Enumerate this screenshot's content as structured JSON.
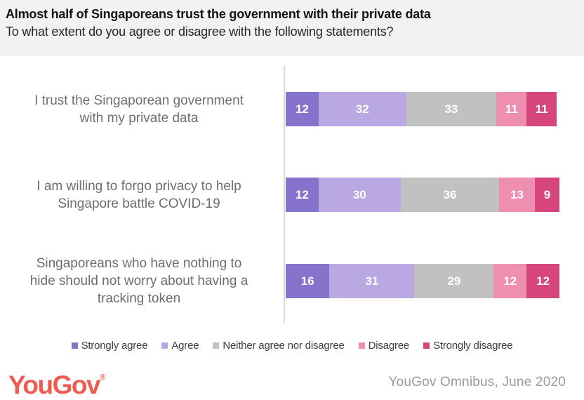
{
  "header": {
    "title": "Almost half of Singaporeans trust the government with their private data",
    "subtitle": "To what extent do you agree or disagree with the following statements?"
  },
  "chart_data": {
    "type": "bar",
    "orientation": "horizontal",
    "stacked": true,
    "title": "Almost half of Singaporeans trust the government with their private data",
    "subtitle": "To what extent do you agree or disagree with the following statements?",
    "xlabel": "",
    "ylabel": "",
    "xlim": [
      0,
      100
    ],
    "value_unit": "percent",
    "value_labels_position": "inside",
    "legend_position": "bottom",
    "grid": false,
    "categories": [
      "I trust the Singaporean government\nwith my private data",
      "I am willing to forgo privacy to help\nSingapore battle COVID-19",
      "Singaporeans who have nothing to\nhide should not worry about having a\ntracking token"
    ],
    "series": [
      {
        "name": "Strongly agree",
        "color": "#8673cb",
        "values": [
          12,
          12,
          16
        ]
      },
      {
        "name": "Agree",
        "color": "#b9a8e2",
        "values": [
          32,
          30,
          31
        ]
      },
      {
        "name": "Neither agree nor disagree",
        "color": "#c2c1c2",
        "values": [
          33,
          36,
          29
        ]
      },
      {
        "name": "Disagree",
        "color": "#ee8fb1",
        "values": [
          11,
          13,
          12
        ]
      },
      {
        "name": "Strongly disagree",
        "color": "#d6457b",
        "values": [
          11,
          9,
          12
        ]
      }
    ]
  },
  "footer": {
    "logo_text": "YouGov",
    "logo_registered": "®",
    "source_text": "YouGov Omnibus, June 2020"
  },
  "colors": {
    "header_background": "#f2f2f2",
    "axis_line": "#dcdcdc",
    "category_label_text": "#6e6d70",
    "legend_text": "#3d3d3d",
    "bar_value_text": "#ffffff",
    "logo": "#ee5b50",
    "source_text": "#9b9a9a"
  }
}
